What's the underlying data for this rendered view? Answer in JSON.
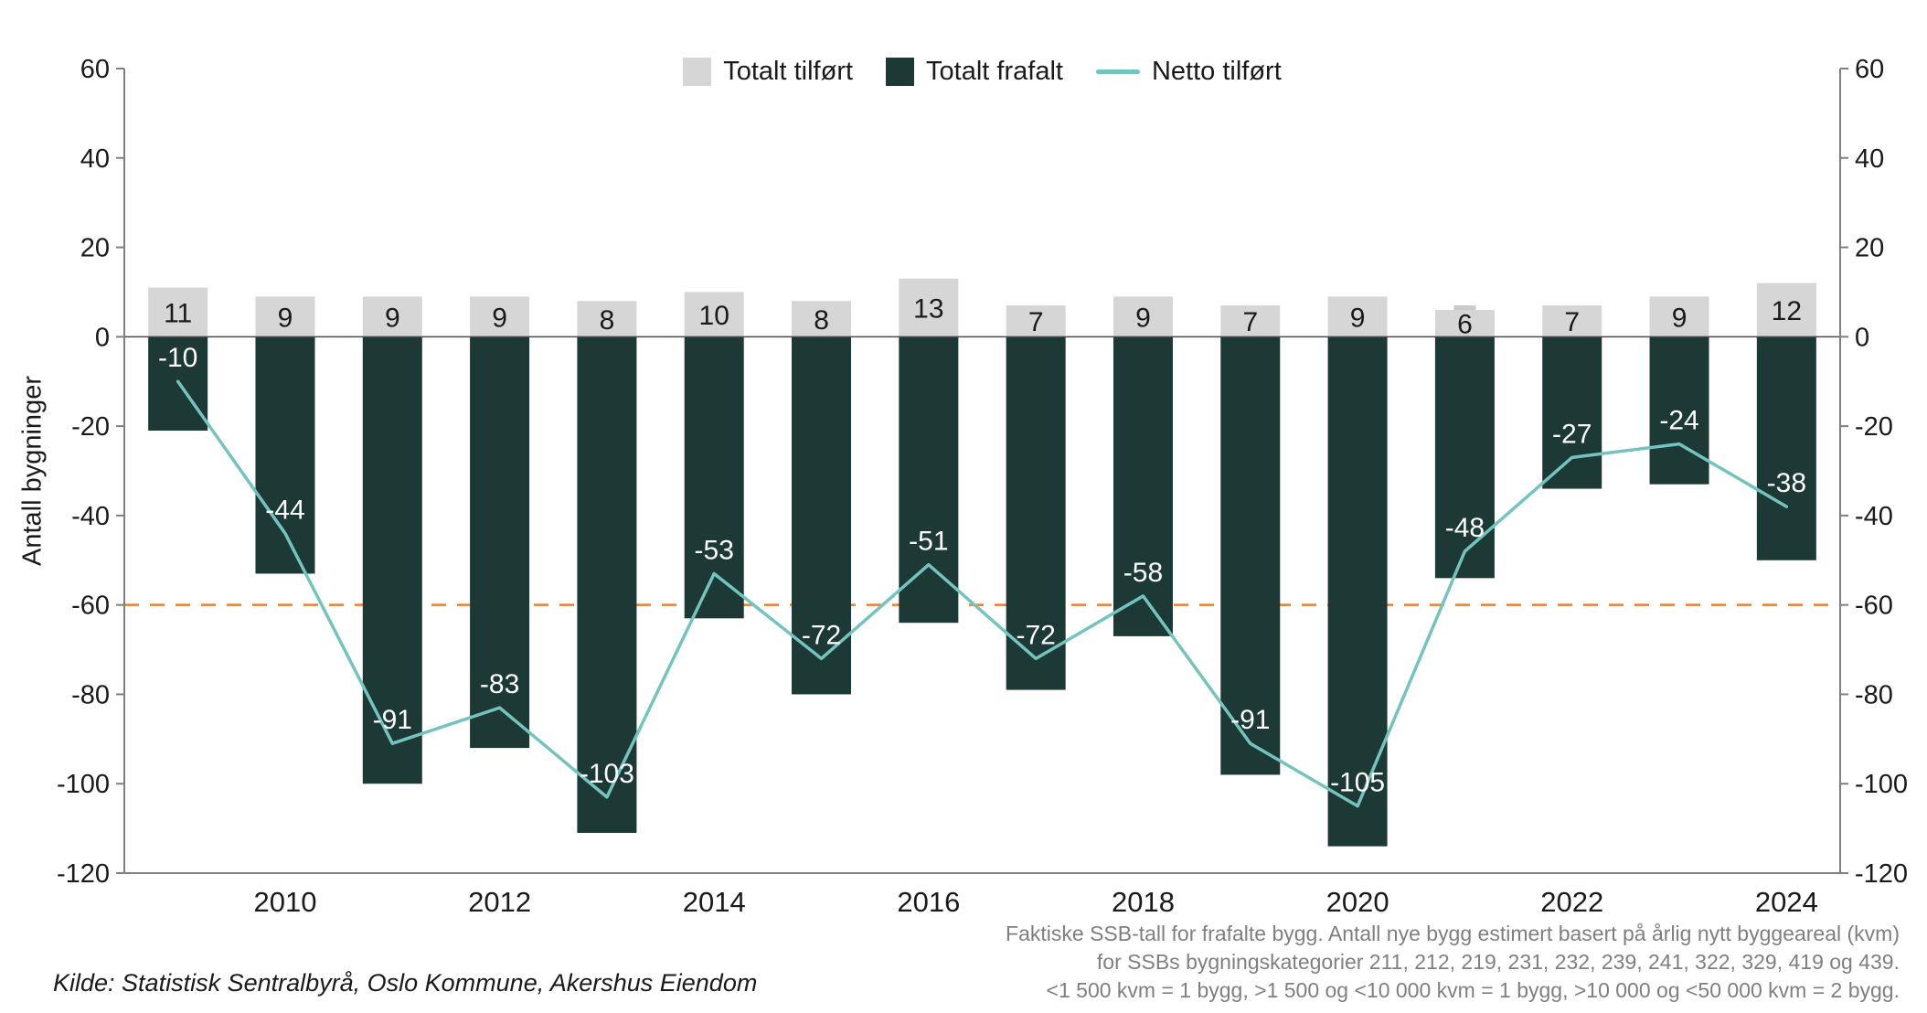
{
  "chart_data": {
    "type": "bar",
    "combo": "bars-with-line",
    "categories": [
      "2009",
      "2010",
      "2011",
      "2012",
      "2013",
      "2014",
      "2015",
      "2016",
      "2017",
      "2018",
      "2019",
      "2020",
      "2021",
      "2022",
      "2023",
      "2024"
    ],
    "series": [
      {
        "name": "Totalt tilført",
        "kind": "bar",
        "values": [
          11,
          9,
          9,
          9,
          8,
          10,
          8,
          13,
          7,
          9,
          7,
          9,
          6,
          7,
          9,
          12
        ],
        "labeled": true
      },
      {
        "name": "Totalt frafalt",
        "kind": "bar",
        "values": [
          -21,
          -53,
          -100,
          -92,
          -111,
          -63,
          -80,
          -64,
          -79,
          -67,
          -98,
          -114,
          -54,
          -34,
          -33,
          -50
        ],
        "labeled": false
      },
      {
        "name": "Netto tilført",
        "kind": "line",
        "values": [
          -10,
          -44,
          -91,
          -83,
          -103,
          -53,
          -72,
          -51,
          -72,
          -58,
          -91,
          -105,
          -48,
          -27,
          -24,
          -38
        ],
        "labeled": true
      }
    ],
    "title": "",
    "xlabel": "",
    "ylabel": "Antall bygninger",
    "ylim": [
      -120,
      60
    ],
    "ytick_step": 20,
    "yticks": [
      60,
      40,
      20,
      0,
      -20,
      -40,
      -60,
      -80,
      -100,
      -120
    ],
    "x_axis_tick_labels": [
      "2010",
      "2012",
      "2014",
      "2016",
      "2018",
      "2020",
      "2022",
      "2024"
    ],
    "x_axis_labeled_years_every": 2,
    "reference_line": {
      "y": -60,
      "style": "dashed"
    },
    "grid": false,
    "legend_position": "top-center",
    "secondary_axis": "right mirror of left",
    "artifact_narrow_gray_notch_year": "2021",
    "colors": {
      "bar_tilfort": "#d6d6d6",
      "bar_tilfort_notch": "#c9c9c9",
      "bar_frafalt": "#1c3936",
      "line_netto": "#74c3bf",
      "reference_line": "#ed7d31",
      "axis": "#7f7f7f",
      "zero_line": "#4a4a4a",
      "label_on_dark": "#ffffff",
      "label_on_gray": "#1a1a1a",
      "tick_text": "#1a1a1a",
      "footnote_text": "#7f7f7f"
    }
  },
  "footer": {
    "source": "Kilde: Statistisk Sentralbyrå, Oslo Kommune, Akershus Eiendom",
    "footnote_lines": [
      "Faktiske SSB-tall for frafalte bygg. Antall nye bygg estimert basert på årlig nytt byggeareal (kvm)",
      "for SSBs bygningskategorier 211, 212, 219, 231, 232, 239, 241, 322, 329, 419 og 439.",
      "<1 500 kvm = 1 bygg, >1 500 og <10 000 kvm = 1 bygg, >10 000 og <50 000 kvm = 2 bygg."
    ]
  }
}
